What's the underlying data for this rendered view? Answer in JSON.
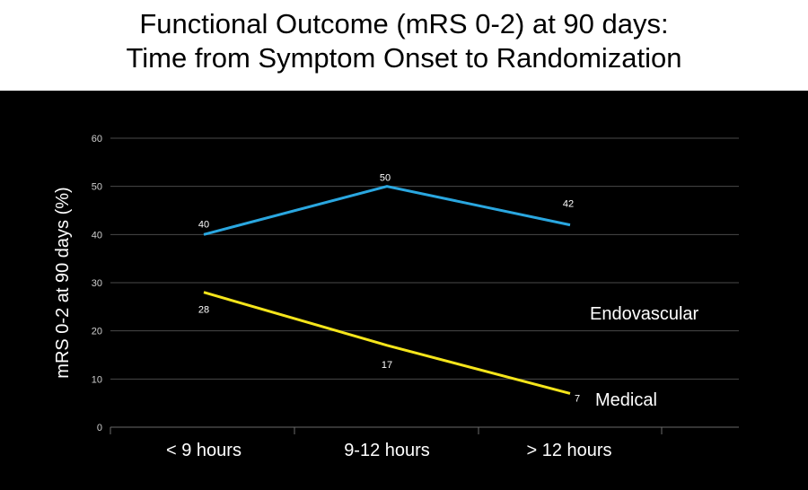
{
  "title": {
    "line1": "Functional Outcome (mRS 0-2) at 90 days:",
    "line2": "Time from Symptom Onset to Randomization"
  },
  "colors": {
    "background": "#000000",
    "grid": "#4a4a4a",
    "endovascular": "#2aa7e0",
    "medical": "#f5e51b"
  },
  "chart_data": {
    "type": "line",
    "title": "Functional Outcome (mRS 0-2) at 90 days: Time from Symptom Onset to Randomization",
    "xlabel": "",
    "ylabel": "mRS 0-2 at 90 days (%)",
    "categories": [
      "< 9 hours",
      "9-12 hours",
      "> 12 hours"
    ],
    "ylim": [
      0,
      60
    ],
    "yticks": [
      0,
      10,
      20,
      30,
      40,
      50,
      60
    ],
    "grid": true,
    "series": [
      {
        "name": "Endovascular",
        "values": [
          40,
          50,
          42
        ],
        "color": "#2aa7e0"
      },
      {
        "name": "Medical",
        "values": [
          28,
          17,
          7
        ],
        "color": "#f5e51b"
      }
    ]
  }
}
